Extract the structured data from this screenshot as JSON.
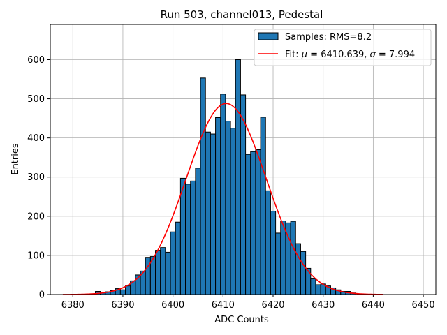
{
  "chart_data": {
    "type": "bar",
    "title": "Run 503, channel013, Pedestal",
    "xlabel": "ADC Counts",
    "ylabel": "Entries",
    "xlim": [
      6375.5,
      6452.5
    ],
    "ylim": [
      0,
      690
    ],
    "xticks": [
      6380,
      6390,
      6400,
      6410,
      6420,
      6430,
      6440,
      6450
    ],
    "yticks": [
      0,
      100,
      200,
      300,
      400,
      500,
      600
    ],
    "grid": true,
    "legend_position": "top-right",
    "bar_color": "#1f77b4",
    "fit_color": "#ff0000",
    "bin_width": 1,
    "histogram": {
      "name": "Samples: RMS=8.2",
      "x": [
        6378,
        6379,
        6380,
        6381,
        6382,
        6383,
        6384,
        6385,
        6386,
        6387,
        6388,
        6389,
        6390,
        6391,
        6392,
        6393,
        6394,
        6395,
        6396,
        6397,
        6398,
        6399,
        6400,
        6401,
        6402,
        6403,
        6404,
        6405,
        6406,
        6407,
        6408,
        6409,
        6410,
        6411,
        6412,
        6413,
        6414,
        6415,
        6416,
        6417,
        6418,
        6419,
        6420,
        6421,
        6422,
        6423,
        6424,
        6425,
        6426,
        6427,
        6428,
        6429,
        6430,
        6431,
        6432,
        6433,
        6434,
        6435,
        6436,
        6437,
        6438,
        6439,
        6440,
        6441,
        6442,
        6443,
        6444,
        6445,
        6446,
        6447,
        6448,
        6449
      ],
      "values": [
        0,
        0,
        0,
        0,
        0,
        0,
        0,
        8,
        4,
        7,
        10,
        15,
        12,
        22,
        35,
        50,
        60,
        95,
        97,
        113,
        120,
        108,
        160,
        185,
        297,
        282,
        290,
        323,
        553,
        415,
        410,
        452,
        512,
        443,
        425,
        600,
        510,
        358,
        365,
        370,
        453,
        265,
        213,
        157,
        188,
        183,
        187,
        130,
        110,
        67,
        40,
        25,
        27,
        22,
        17,
        12,
        8,
        8,
        4,
        0,
        0,
        0,
        0,
        0,
        0,
        0,
        0,
        0,
        0,
        0,
        0,
        0
      ]
    },
    "fit": {
      "name": "Fit: μ = 6410.639, σ = 7.994",
      "label_prefix": "Fit: ",
      "label_mu": "μ",
      "label_mid": " = 6410.639, ",
      "label_sigma": "σ",
      "label_suffix": " = 7.994",
      "mu": 6410.639,
      "sigma": 7.994,
      "amplitude": 488,
      "x_range": [
        6378,
        6442
      ]
    }
  }
}
